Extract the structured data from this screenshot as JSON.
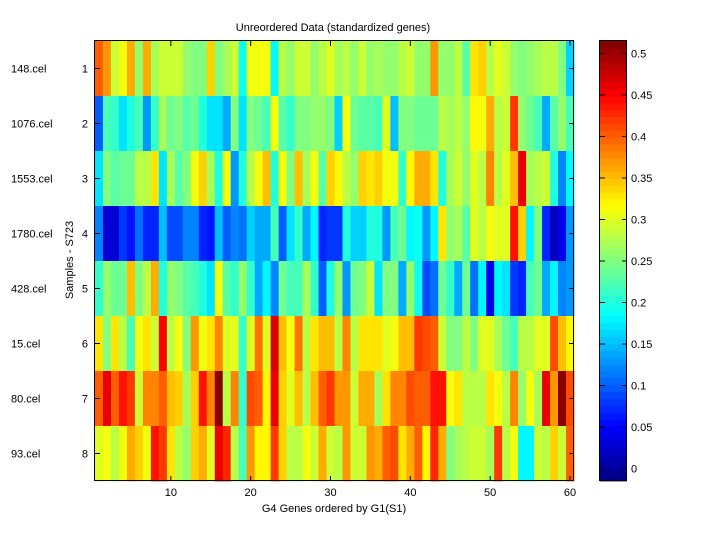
{
  "chart_data": {
    "type": "heatmap",
    "title": "Unreordered Data (standardized genes)",
    "xlabel": "G4 Genes ordered by G1(S1)",
    "ylabel": "Samples - S723",
    "xlim": [
      0.5,
      60.5
    ],
    "x_ticks": [
      10,
      20,
      30,
      40,
      50,
      60
    ],
    "y_ticks": [
      1,
      2,
      3,
      4,
      5,
      6,
      7,
      8
    ],
    "row_labels": [
      "148.cel",
      "1076.cel",
      "1553.cel",
      "1780.cel",
      "428.cel",
      "15.cel",
      "80.cel",
      "93.cel"
    ],
    "colormap": "jet",
    "clim": [
      -0.015,
      0.515
    ],
    "colorbar_ticks": [
      0,
      0.05,
      0.1,
      0.15,
      0.2,
      0.25,
      0.3,
      0.35,
      0.4,
      0.45,
      0.5
    ],
    "colorbar_tick_labels": [
      "0",
      "0.05",
      "0.1",
      "0.15",
      "0.2",
      "0.25",
      "0.3",
      "0.35",
      "0.4",
      "0.45",
      "0.5"
    ],
    "values": [
      [
        0.4,
        0.37,
        0.29,
        0.31,
        0.36,
        0.26,
        0.36,
        0.27,
        0.29,
        0.29,
        0.29,
        0.26,
        0.25,
        0.25,
        0.34,
        0.25,
        0.27,
        0.29,
        0.19,
        0.31,
        0.31,
        0.31,
        0.18,
        0.28,
        0.26,
        0.29,
        0.29,
        0.26,
        0.28,
        0.3,
        0.27,
        0.28,
        0.26,
        0.29,
        0.26,
        0.27,
        0.26,
        0.26,
        0.28,
        0.29,
        0.26,
        0.26,
        0.37,
        0.26,
        0.26,
        0.28,
        0.23,
        0.33,
        0.34,
        0.28,
        0.3,
        0.29,
        0.26,
        0.25,
        0.26,
        0.27,
        0.28,
        0.28,
        0.25,
        0.16
      ],
      [
        0.1,
        0.22,
        0.21,
        0.17,
        0.2,
        0.22,
        0.13,
        0.21,
        0.27,
        0.24,
        0.25,
        0.23,
        0.24,
        0.2,
        0.17,
        0.17,
        0.14,
        0.25,
        0.17,
        0.25,
        0.24,
        0.22,
        0.31,
        0.23,
        0.21,
        0.25,
        0.25,
        0.26,
        0.26,
        0.25,
        0.16,
        0.31,
        0.24,
        0.23,
        0.23,
        0.22,
        0.3,
        0.15,
        0.25,
        0.25,
        0.24,
        0.24,
        0.24,
        0.28,
        0.27,
        0.28,
        0.26,
        0.32,
        0.31,
        0.36,
        0.28,
        0.29,
        0.42,
        0.26,
        0.24,
        0.22,
        0.14,
        0.23,
        0.26,
        0.22
      ],
      [
        0.17,
        0.25,
        0.23,
        0.24,
        0.24,
        0.28,
        0.28,
        0.33,
        0.17,
        0.27,
        0.23,
        0.25,
        0.31,
        0.34,
        0.27,
        0.2,
        0.31,
        0.13,
        0.2,
        0.28,
        0.31,
        0.35,
        0.2,
        0.31,
        0.25,
        0.35,
        0.27,
        0.31,
        0.23,
        0.34,
        0.32,
        0.28,
        0.26,
        0.34,
        0.33,
        0.34,
        0.31,
        0.31,
        0.21,
        0.32,
        0.36,
        0.36,
        0.33,
        0.2,
        0.27,
        0.29,
        0.26,
        0.3,
        0.28,
        0.38,
        0.28,
        0.3,
        0.35,
        0.46,
        0.27,
        0.28,
        0.29,
        0.2,
        0.12,
        0.18
      ],
      [
        0.12,
        0.03,
        0.03,
        0.08,
        0.06,
        0.11,
        0.07,
        0.07,
        0.15,
        0.09,
        0.09,
        0.12,
        0.12,
        0.07,
        0.06,
        0.15,
        0.1,
        0.12,
        0.11,
        0.16,
        0.14,
        0.14,
        0.22,
        0.1,
        0.17,
        0.21,
        0.14,
        0.18,
        0.07,
        0.08,
        0.08,
        0.2,
        0.16,
        0.16,
        0.2,
        0.2,
        0.13,
        0.22,
        0.24,
        0.18,
        0.19,
        0.13,
        0.18,
        0.33,
        0.26,
        0.27,
        0.23,
        0.3,
        0.28,
        0.31,
        0.3,
        0.3,
        0.44,
        0.34,
        0.18,
        0.25,
        0.07,
        0.02,
        0.04,
        0.13
      ],
      [
        0.21,
        0.26,
        0.24,
        0.24,
        0.35,
        0.25,
        0.28,
        0.36,
        0.2,
        0.26,
        0.25,
        0.23,
        0.22,
        0.2,
        0.17,
        0.31,
        0.23,
        0.21,
        0.26,
        0.21,
        0.14,
        0.18,
        0.12,
        0.24,
        0.22,
        0.22,
        0.27,
        0.21,
        0.1,
        0.2,
        0.26,
        0.13,
        0.24,
        0.25,
        0.29,
        0.17,
        0.25,
        0.25,
        0.14,
        0.26,
        0.19,
        0.09,
        0.11,
        0.24,
        0.21,
        0.14,
        0.24,
        0.11,
        0.18,
        0.04,
        0.18,
        0.17,
        0.08,
        0.07,
        0.22,
        0.24,
        0.14,
        0.18,
        0.12,
        0.13
      ],
      [
        0.33,
        0.25,
        0.33,
        0.28,
        0.22,
        0.31,
        0.33,
        0.29,
        0.45,
        0.28,
        0.31,
        0.25,
        0.37,
        0.31,
        0.33,
        0.38,
        0.3,
        0.3,
        0.21,
        0.3,
        0.39,
        0.3,
        0.47,
        0.35,
        0.31,
        0.39,
        0.28,
        0.33,
        0.35,
        0.35,
        0.28,
        0.38,
        0.28,
        0.33,
        0.33,
        0.33,
        0.3,
        0.31,
        0.35,
        0.35,
        0.42,
        0.41,
        0.4,
        0.29,
        0.25,
        0.25,
        0.28,
        0.25,
        0.3,
        0.3,
        0.27,
        0.24,
        0.22,
        0.28,
        0.28,
        0.3,
        0.3,
        0.41,
        0.35,
        0.32
      ],
      [
        0.4,
        0.46,
        0.4,
        0.44,
        0.42,
        0.29,
        0.38,
        0.38,
        0.4,
        0.35,
        0.34,
        0.27,
        0.34,
        0.44,
        0.38,
        0.51,
        0.28,
        0.38,
        0.21,
        0.41,
        0.4,
        0.32,
        0.46,
        0.34,
        0.3,
        0.35,
        0.28,
        0.35,
        0.4,
        0.42,
        0.37,
        0.37,
        0.29,
        0.36,
        0.36,
        0.27,
        0.33,
        0.38,
        0.38,
        0.41,
        0.4,
        0.4,
        0.44,
        0.44,
        0.31,
        0.33,
        0.28,
        0.28,
        0.28,
        0.33,
        0.31,
        0.28,
        0.38,
        0.26,
        0.31,
        0.27,
        0.46,
        0.37,
        0.51,
        0.41
      ],
      [
        0.3,
        0.31,
        0.28,
        0.31,
        0.36,
        0.34,
        0.31,
        0.44,
        0.42,
        0.33,
        0.28,
        0.26,
        0.34,
        0.36,
        0.3,
        0.46,
        0.43,
        0.28,
        0.22,
        0.37,
        0.32,
        0.32,
        0.42,
        0.34,
        0.28,
        0.28,
        0.31,
        0.29,
        0.36,
        0.29,
        0.28,
        0.37,
        0.29,
        0.29,
        0.37,
        0.36,
        0.4,
        0.41,
        0.33,
        0.36,
        0.4,
        0.32,
        0.43,
        0.36,
        0.25,
        0.27,
        0.28,
        0.29,
        0.29,
        0.27,
        0.42,
        0.28,
        0.31,
        0.18,
        0.18,
        0.29,
        0.28,
        0.34,
        0.29,
        0.4
      ]
    ]
  }
}
